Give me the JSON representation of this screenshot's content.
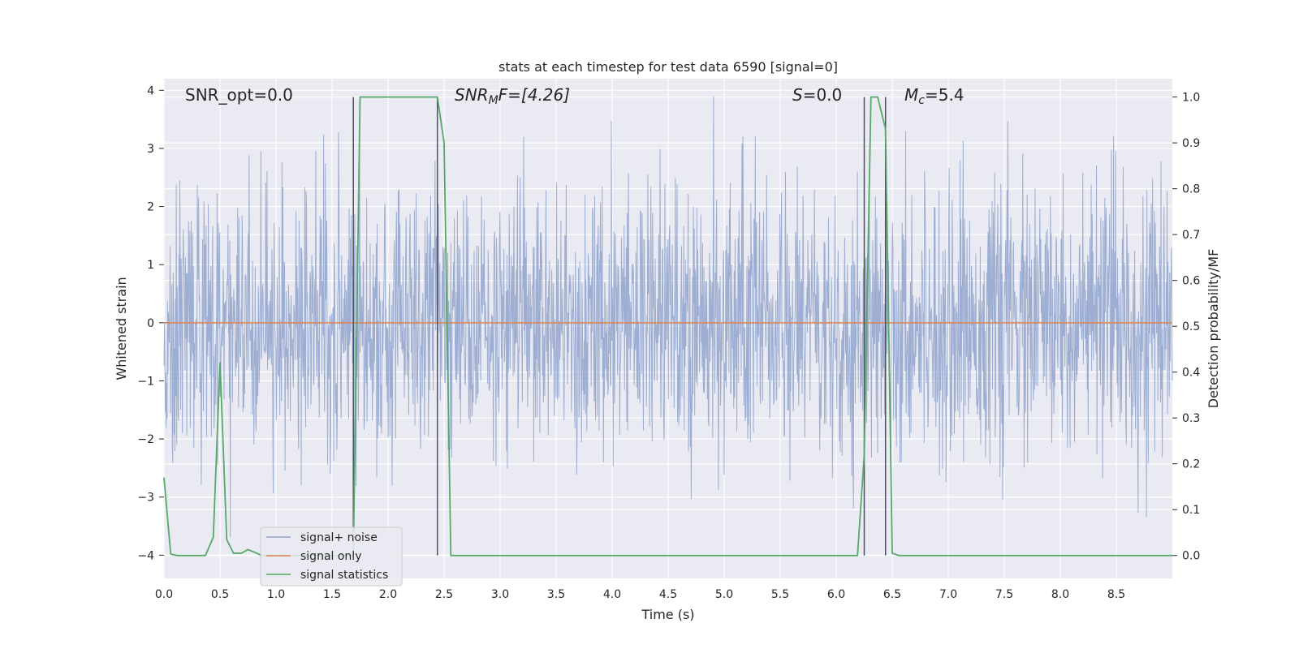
{
  "chart_data": {
    "type": "line",
    "title": "stats at each timestep for test data 6590 [signal=0]",
    "xlabel": "Time (s)",
    "ylabel_left": "Whitened strain",
    "ylabel_right": "Detection probability/MF",
    "xlim": [
      0,
      9.0
    ],
    "ylim_left": [
      -4.4,
      4.2
    ],
    "ylim_right": [
      -0.05,
      1.04
    ],
    "x_ticks": [
      "0.0",
      "0.5",
      "1.0",
      "1.5",
      "2.0",
      "2.5",
      "3.0",
      "3.5",
      "4.0",
      "4.5",
      "5.0",
      "5.5",
      "6.0",
      "6.5",
      "7.0",
      "7.5",
      "8.0",
      "8.5"
    ],
    "y_left_ticks": [
      "4",
      "3",
      "2",
      "1",
      "0",
      "−1",
      "−2",
      "−3",
      "−4"
    ],
    "y_right_ticks": [
      "1.0",
      "0.9",
      "0.8",
      "0.7",
      "0.6",
      "0.5",
      "0.4",
      "0.3",
      "0.2",
      "0.1",
      "0.0"
    ],
    "grid": true,
    "legend_position": "lower-left",
    "annotations": {
      "snr_opt": "SNR_opt=0.0",
      "snr_mf_base": "SNR",
      "snr_mf_sub": "M",
      "snr_mf_rest": "F=[4.26]",
      "s_stat_var": "S",
      "s_stat_rest": "=0.0",
      "mc_base": "M",
      "mc_sub": "c",
      "mc_rest": "=5.4"
    },
    "vertical_lines": [
      1.69,
      2.44,
      6.25,
      6.44
    ],
    "series": [
      {
        "name": "signal+ noise",
        "color": "#8fa3cd",
        "noise_std": 1.0,
        "note_values": "dense whitened-strain noise between about -3.8 and 3.8"
      },
      {
        "name": "signal only",
        "color": "#dd8452",
        "x": [
          0.0,
          9.0
        ],
        "y": [
          0.0,
          0.0
        ]
      },
      {
        "name": "signal statistics",
        "color": "#55a868",
        "x": [
          0.0,
          0.06,
          0.12,
          0.37,
          0.44,
          0.5,
          0.56,
          0.62,
          0.69,
          0.75,
          0.81,
          0.87,
          0.94,
          1.0,
          1.06,
          1.12,
          1.18,
          1.25,
          1.31,
          1.37,
          1.44,
          1.5,
          1.56,
          1.62,
          1.69,
          1.75,
          2.37,
          2.44,
          2.5,
          2.56,
          2.62,
          6.19,
          6.25,
          6.31,
          6.37,
          6.44,
          6.5,
          6.56,
          9.0
        ],
        "y": [
          0.17,
          0.003,
          0.0,
          0.0,
          0.04,
          0.42,
          0.035,
          0.005,
          0.005,
          0.013,
          0.007,
          0.0,
          0.0,
          0.0,
          0.0,
          0.0,
          0.0,
          0.0,
          0.0,
          0.0,
          0.0,
          0.0,
          0.0,
          0.0,
          0.0,
          1.0,
          1.0,
          1.0,
          0.9,
          0.0,
          0.0,
          0.0,
          0.22,
          1.0,
          1.0,
          0.93,
          0.005,
          0.0,
          0.0
        ]
      }
    ]
  }
}
